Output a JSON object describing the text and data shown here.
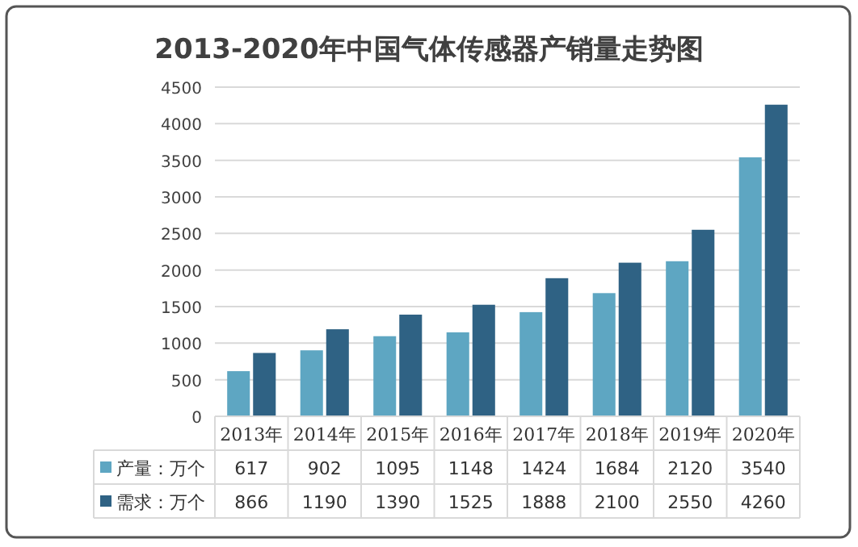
{
  "chart_data": {
    "type": "bar",
    "title": "2013-2020年中国气体传感器产销量走势图",
    "categories": [
      "2013年",
      "2014年",
      "2015年",
      "2016年",
      "2017年",
      "2018年",
      "2019年",
      "2020年"
    ],
    "series": [
      {
        "name": "产量：万个",
        "color": "#5ea6c2",
        "values": [
          617,
          902,
          1095,
          1148,
          1424,
          1684,
          2120,
          3540
        ]
      },
      {
        "name": "需求：万个",
        "color": "#2f6284",
        "values": [
          866,
          1190,
          1390,
          1525,
          1888,
          2100,
          2550,
          4260
        ]
      }
    ],
    "ylim": [
      0,
      4500
    ],
    "yticks": [
      0,
      500,
      1000,
      1500,
      2000,
      2500,
      3000,
      3500,
      4000,
      4500
    ],
    "grid": "y",
    "legend": "bottom",
    "data_labels": true
  }
}
